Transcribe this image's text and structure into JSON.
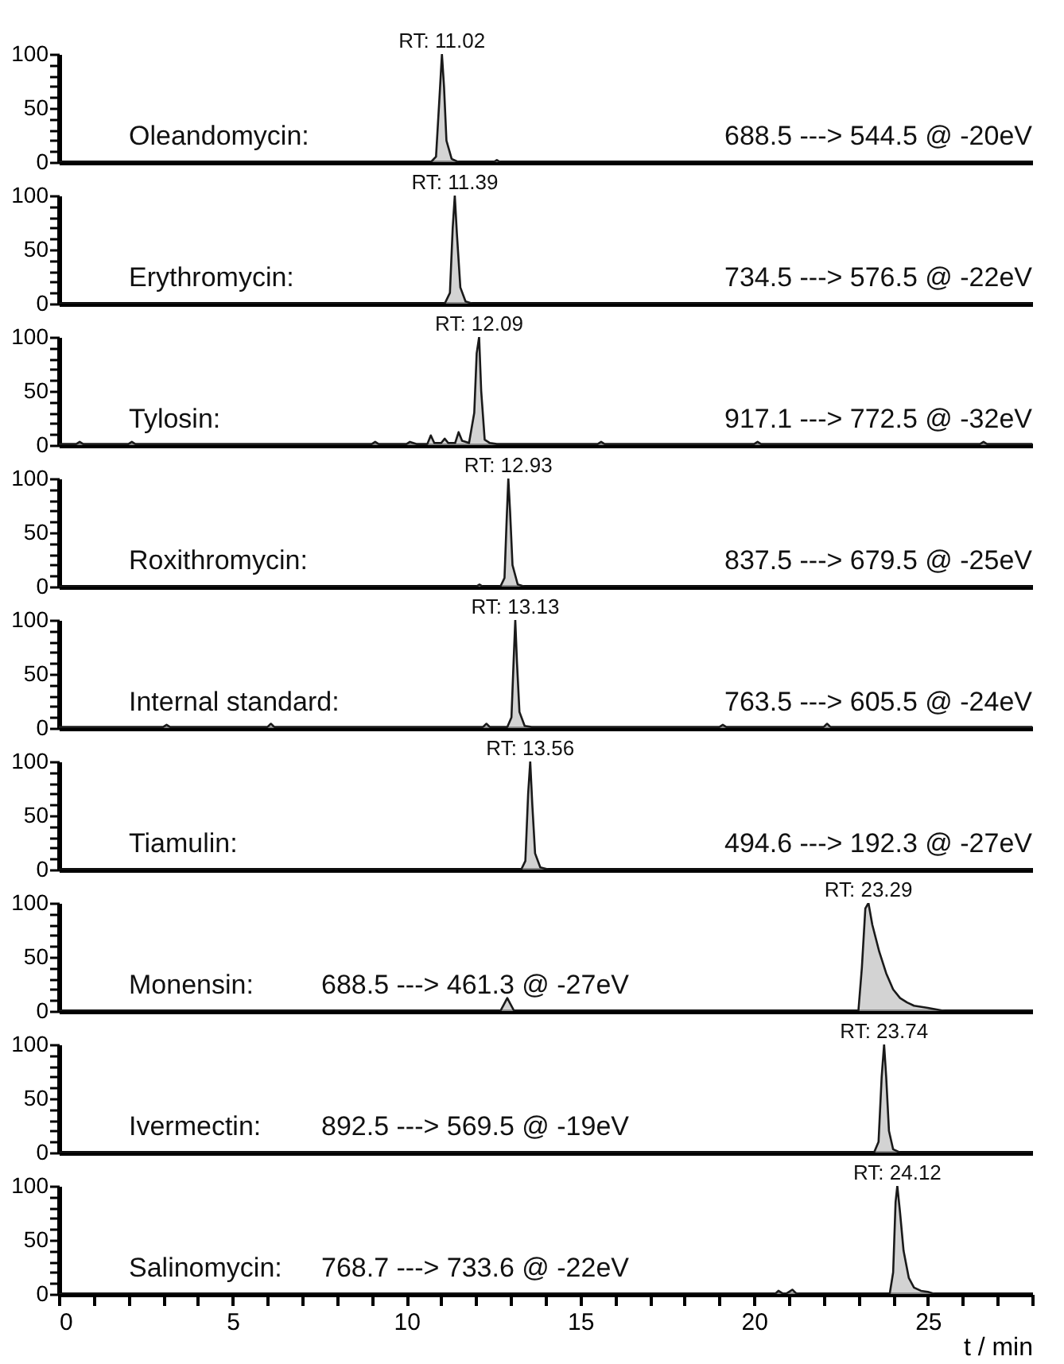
{
  "chart_data": [
    {
      "type": "area",
      "color": "#c0c0c0",
      "xlim": [
        0,
        28
      ],
      "ylim": [
        0,
        100
      ],
      "yticks": [
        0,
        {
          "value": 10,
          "label": null
        },
        {
          "value": 20,
          "label": null
        },
        {
          "value": 30,
          "label": null
        },
        {
          "value": 40,
          "label": null
        },
        50,
        {
          "value": 60,
          "label": null
        },
        {
          "value": 70,
          "label": null
        },
        {
          "value": 80,
          "label": null
        },
        {
          "value": 90,
          "label": null
        },
        100
      ],
      "tick_labels": "y",
      "x": [
        0,
        10.7,
        10.85,
        10.95,
        11.02,
        11.08,
        11.15,
        11.3,
        11.5,
        12.5,
        12.6,
        12.7,
        28
      ],
      "values": [
        0,
        0,
        5,
        60,
        100,
        70,
        20,
        3,
        0,
        0,
        2,
        0,
        0
      ],
      "annotations": [
        "Oleandomycin:",
        "688.5 ---> 544.5 @ -20eV",
        {
          "text": "RT: 11.02",
          "x": 11.02,
          "y": 100
        }
      ]
    },
    {
      "type": "area",
      "color": "#c0c0c0",
      "xlim": [
        0,
        28
      ],
      "ylim": [
        0,
        100
      ],
      "yticks": [
        0,
        {
          "value": 10,
          "label": null
        },
        {
          "value": 20,
          "label": null
        },
        {
          "value": 30,
          "label": null
        },
        {
          "value": 40,
          "label": null
        },
        50,
        {
          "value": 60,
          "label": null
        },
        {
          "value": 70,
          "label": null
        },
        {
          "value": 80,
          "label": null
        },
        {
          "value": 90,
          "label": null
        },
        100
      ],
      "tick_labels": "y",
      "x": [
        0,
        11.1,
        11.25,
        11.33,
        11.39,
        11.45,
        11.55,
        11.7,
        11.9,
        28
      ],
      "values": [
        0,
        0,
        10,
        70,
        100,
        65,
        15,
        2,
        0,
        0
      ],
      "annotations": [
        "Erythromycin:",
        "734.5 ---> 576.5 @ -22eV",
        {
          "text": "RT: 11.39",
          "x": 11.39,
          "y": 100
        }
      ]
    },
    {
      "type": "area",
      "color": "#c0c0c0",
      "xlim": [
        0,
        28
      ],
      "ylim": [
        0,
        100
      ],
      "yticks": [
        0,
        {
          "value": 10,
          "label": null
        },
        {
          "value": 20,
          "label": null
        },
        {
          "value": 30,
          "label": null
        },
        {
          "value": 40,
          "label": null
        },
        50,
        {
          "value": 60,
          "label": null
        },
        {
          "value": 70,
          "label": null
        },
        {
          "value": 80,
          "label": null
        },
        {
          "value": 90,
          "label": null
        },
        100
      ],
      "tick_labels": "y",
      "x": [
        0,
        0.5,
        0.6,
        0.7,
        2.0,
        2.1,
        2.2,
        9,
        9.1,
        9.2,
        10.0,
        10.1,
        10.3,
        10.6,
        10.7,
        10.8,
        11.0,
        11.1,
        11.2,
        11.4,
        11.5,
        11.6,
        11.8,
        11.95,
        12.02,
        12.09,
        12.15,
        12.25,
        12.4,
        12.6,
        15.5,
        15.6,
        15.7,
        20,
        20.1,
        20.2,
        26.5,
        26.6,
        26.7,
        28
      ],
      "values": [
        1,
        1,
        3,
        1,
        1,
        3,
        1,
        1,
        3,
        1,
        1,
        3,
        1,
        1,
        9,
        2,
        2,
        6,
        2,
        2,
        12,
        4,
        2,
        30,
        85,
        100,
        50,
        5,
        2,
        1,
        1,
        3,
        1,
        1,
        3,
        1,
        1,
        3,
        1,
        1
      ],
      "annotations": [
        "Tylosin:",
        "917.1 ---> 772.5 @ -32eV",
        {
          "text": "RT: 12.09",
          "x": 12.09,
          "y": 100
        }
      ]
    },
    {
      "type": "area",
      "color": "#c0c0c0",
      "xlim": [
        0,
        28
      ],
      "ylim": [
        0,
        100
      ],
      "yticks": [
        0,
        {
          "value": 10,
          "label": null
        },
        {
          "value": 20,
          "label": null
        },
        {
          "value": 30,
          "label": null
        },
        {
          "value": 40,
          "label": null
        },
        50,
        {
          "value": 60,
          "label": null
        },
        {
          "value": 70,
          "label": null
        },
        {
          "value": 80,
          "label": null
        },
        {
          "value": 90,
          "label": null
        },
        100
      ],
      "tick_labels": "y",
      "x": [
        0,
        12.0,
        12.1,
        12.2,
        12.7,
        12.82,
        12.88,
        12.93,
        12.98,
        13.05,
        13.2,
        13.4,
        28
      ],
      "values": [
        0,
        0,
        2,
        0,
        0,
        8,
        60,
        100,
        70,
        20,
        2,
        0,
        0
      ],
      "annotations": [
        "Roxithromycin:",
        "837.5 ---> 679.5 @ -25eV",
        {
          "text": "RT: 12.93",
          "x": 12.93,
          "y": 100
        }
      ]
    },
    {
      "type": "area",
      "color": "#c0c0c0",
      "xlim": [
        0,
        28
      ],
      "ylim": [
        0,
        100
      ],
      "yticks": [
        0,
        {
          "value": 10,
          "label": null
        },
        {
          "value": 20,
          "label": null
        },
        {
          "value": 30,
          "label": null
        },
        {
          "value": 40,
          "label": null
        },
        50,
        {
          "value": 60,
          "label": null
        },
        {
          "value": 70,
          "label": null
        },
        {
          "value": 80,
          "label": null
        },
        {
          "value": 90,
          "label": null
        },
        100
      ],
      "tick_labels": "y",
      "x": [
        0,
        3,
        3.1,
        3.2,
        6,
        6.1,
        6.2,
        12.2,
        12.3,
        12.4,
        12.9,
        13.02,
        13.08,
        13.13,
        13.18,
        13.25,
        13.4,
        13.6,
        19,
        19.1,
        19.2,
        22,
        22.1,
        22.2,
        28
      ],
      "values": [
        1,
        1,
        3,
        1,
        1,
        4,
        1,
        1,
        4,
        1,
        1,
        10,
        60,
        100,
        60,
        15,
        2,
        1,
        1,
        3,
        1,
        1,
        4,
        1,
        1
      ],
      "annotations": [
        "Internal standard:",
        "763.5 ---> 605.5 @ -24eV",
        {
          "text": "RT: 13.13",
          "x": 13.13,
          "y": 100
        }
      ]
    },
    {
      "type": "area",
      "color": "#c0c0c0",
      "xlim": [
        0,
        28
      ],
      "ylim": [
        0,
        100
      ],
      "yticks": [
        0,
        {
          "value": 10,
          "label": null
        },
        {
          "value": 20,
          "label": null
        },
        {
          "value": 30,
          "label": null
        },
        {
          "value": 40,
          "label": null
        },
        50,
        {
          "value": 60,
          "label": null
        },
        {
          "value": 70,
          "label": null
        },
        {
          "value": 80,
          "label": null
        },
        {
          "value": 90,
          "label": null
        },
        100
      ],
      "tick_labels": "y",
      "x": [
        0,
        13.3,
        13.42,
        13.5,
        13.56,
        13.62,
        13.7,
        13.85,
        14.1,
        28
      ],
      "values": [
        0,
        0,
        8,
        70,
        100,
        60,
        15,
        2,
        0,
        0
      ],
      "annotations": [
        "Tiamulin:",
        "494.6 ---> 192.3 @ -27eV",
        {
          "text": "RT: 13.56",
          "x": 13.56,
          "y": 100
        }
      ]
    },
    {
      "type": "area",
      "color": "#c0c0c0",
      "xlim": [
        0,
        28
      ],
      "ylim": [
        0,
        100
      ],
      "yticks": [
        0,
        {
          "value": 10,
          "label": null
        },
        {
          "value": 20,
          "label": null
        },
        {
          "value": 30,
          "label": null
        },
        {
          "value": 40,
          "label": null
        },
        50,
        {
          "value": 60,
          "label": null
        },
        {
          "value": 70,
          "label": null
        },
        {
          "value": 80,
          "label": null
        },
        {
          "value": 90,
          "label": null
        },
        100
      ],
      "tick_labels": "y",
      "x": [
        0,
        12.7,
        12.8,
        12.9,
        13.0,
        13.1,
        23.0,
        23.1,
        23.2,
        23.29,
        23.4,
        23.6,
        23.8,
        24.0,
        24.2,
        24.4,
        24.6,
        25.0,
        25.5,
        28
      ],
      "values": [
        0,
        0,
        6,
        12,
        6,
        0,
        0,
        40,
        95,
        100,
        80,
        55,
        35,
        20,
        12,
        8,
        5,
        3,
        0,
        0
      ],
      "annotations": [
        "Monensin:",
        "688.5 ---> 461.3 @ -27eV",
        {
          "text": "RT: 23.29",
          "x": 23.29,
          "y": 100
        }
      ]
    },
    {
      "type": "area",
      "color": "#c0c0c0",
      "xlim": [
        0,
        28
      ],
      "ylim": [
        0,
        100
      ],
      "yticks": [
        0,
        {
          "value": 10,
          "label": null
        },
        {
          "value": 20,
          "label": null
        },
        {
          "value": 30,
          "label": null
        },
        {
          "value": 40,
          "label": null
        },
        50,
        {
          "value": 60,
          "label": null
        },
        {
          "value": 70,
          "label": null
        },
        {
          "value": 80,
          "label": null
        },
        {
          "value": 90,
          "label": null
        },
        100
      ],
      "tick_labels": "y",
      "x": [
        0,
        23.45,
        23.58,
        23.67,
        23.74,
        23.8,
        23.88,
        24.0,
        24.2,
        28
      ],
      "values": [
        0,
        0,
        10,
        70,
        100,
        70,
        20,
        3,
        0,
        0
      ],
      "annotations": [
        "Ivermectin:",
        "892.5 ---> 569.5 @ -19eV",
        {
          "text": "RT: 23.74",
          "x": 23.74,
          "y": 100
        }
      ]
    },
    {
      "type": "area",
      "color": "#c0c0c0",
      "xlim": [
        0,
        28
      ],
      "ylim": [
        0,
        100
      ],
      "yticks": [
        0,
        {
          "value": 10,
          "label": null
        },
        {
          "value": 20,
          "label": null
        },
        {
          "value": 30,
          "label": null
        },
        {
          "value": 40,
          "label": null
        },
        50,
        {
          "value": 60,
          "label": null
        },
        {
          "value": 70,
          "label": null
        },
        {
          "value": 80,
          "label": null
        },
        {
          "value": 90,
          "label": null
        },
        100
      ],
      "xticks": [
        0,
        {
          "value": 1,
          "label": null
        },
        {
          "value": 2,
          "label": null
        },
        {
          "value": 3,
          "label": null
        },
        {
          "value": 4,
          "label": null
        },
        5,
        {
          "value": 6,
          "label": null
        },
        {
          "value": 7,
          "label": null
        },
        {
          "value": 8,
          "label": null
        },
        {
          "value": 9,
          "label": null
        },
        10,
        {
          "value": 11,
          "label": null
        },
        {
          "value": 12,
          "label": null
        },
        {
          "value": 13,
          "label": null
        },
        {
          "value": 14,
          "label": null
        },
        15,
        {
          "value": 16,
          "label": null
        },
        {
          "value": 17,
          "label": null
        },
        {
          "value": 18,
          "label": null
        },
        {
          "value": 19,
          "label": null
        },
        20,
        {
          "value": 21,
          "label": null
        },
        {
          "value": 22,
          "label": null
        },
        {
          "value": 23,
          "label": null
        },
        {
          "value": 24,
          "label": null
        },
        25,
        {
          "value": 26,
          "label": null
        },
        {
          "value": 27,
          "label": null
        },
        {
          "value": 28,
          "label": null
        }
      ],
      "xlabel": "t / min",
      "x": [
        0,
        20.6,
        20.7,
        20.8,
        20.9,
        21.0,
        21.1,
        21.2,
        21.3,
        23.9,
        24.0,
        24.07,
        24.12,
        24.2,
        24.3,
        24.45,
        24.6,
        24.8,
        25.0,
        25.2,
        28
      ],
      "values": [
        0,
        0,
        3,
        1,
        0,
        2,
        4,
        1,
        0,
        0,
        20,
        85,
        100,
        75,
        40,
        15,
        6,
        3,
        2,
        0,
        0
      ],
      "annotations": [
        "Salinomycin:",
        "768.7 ---> 733.6 @ -22eV",
        {
          "text": "RT: 24.12",
          "x": 24.12,
          "y": 100
        }
      ]
    }
  ]
}
